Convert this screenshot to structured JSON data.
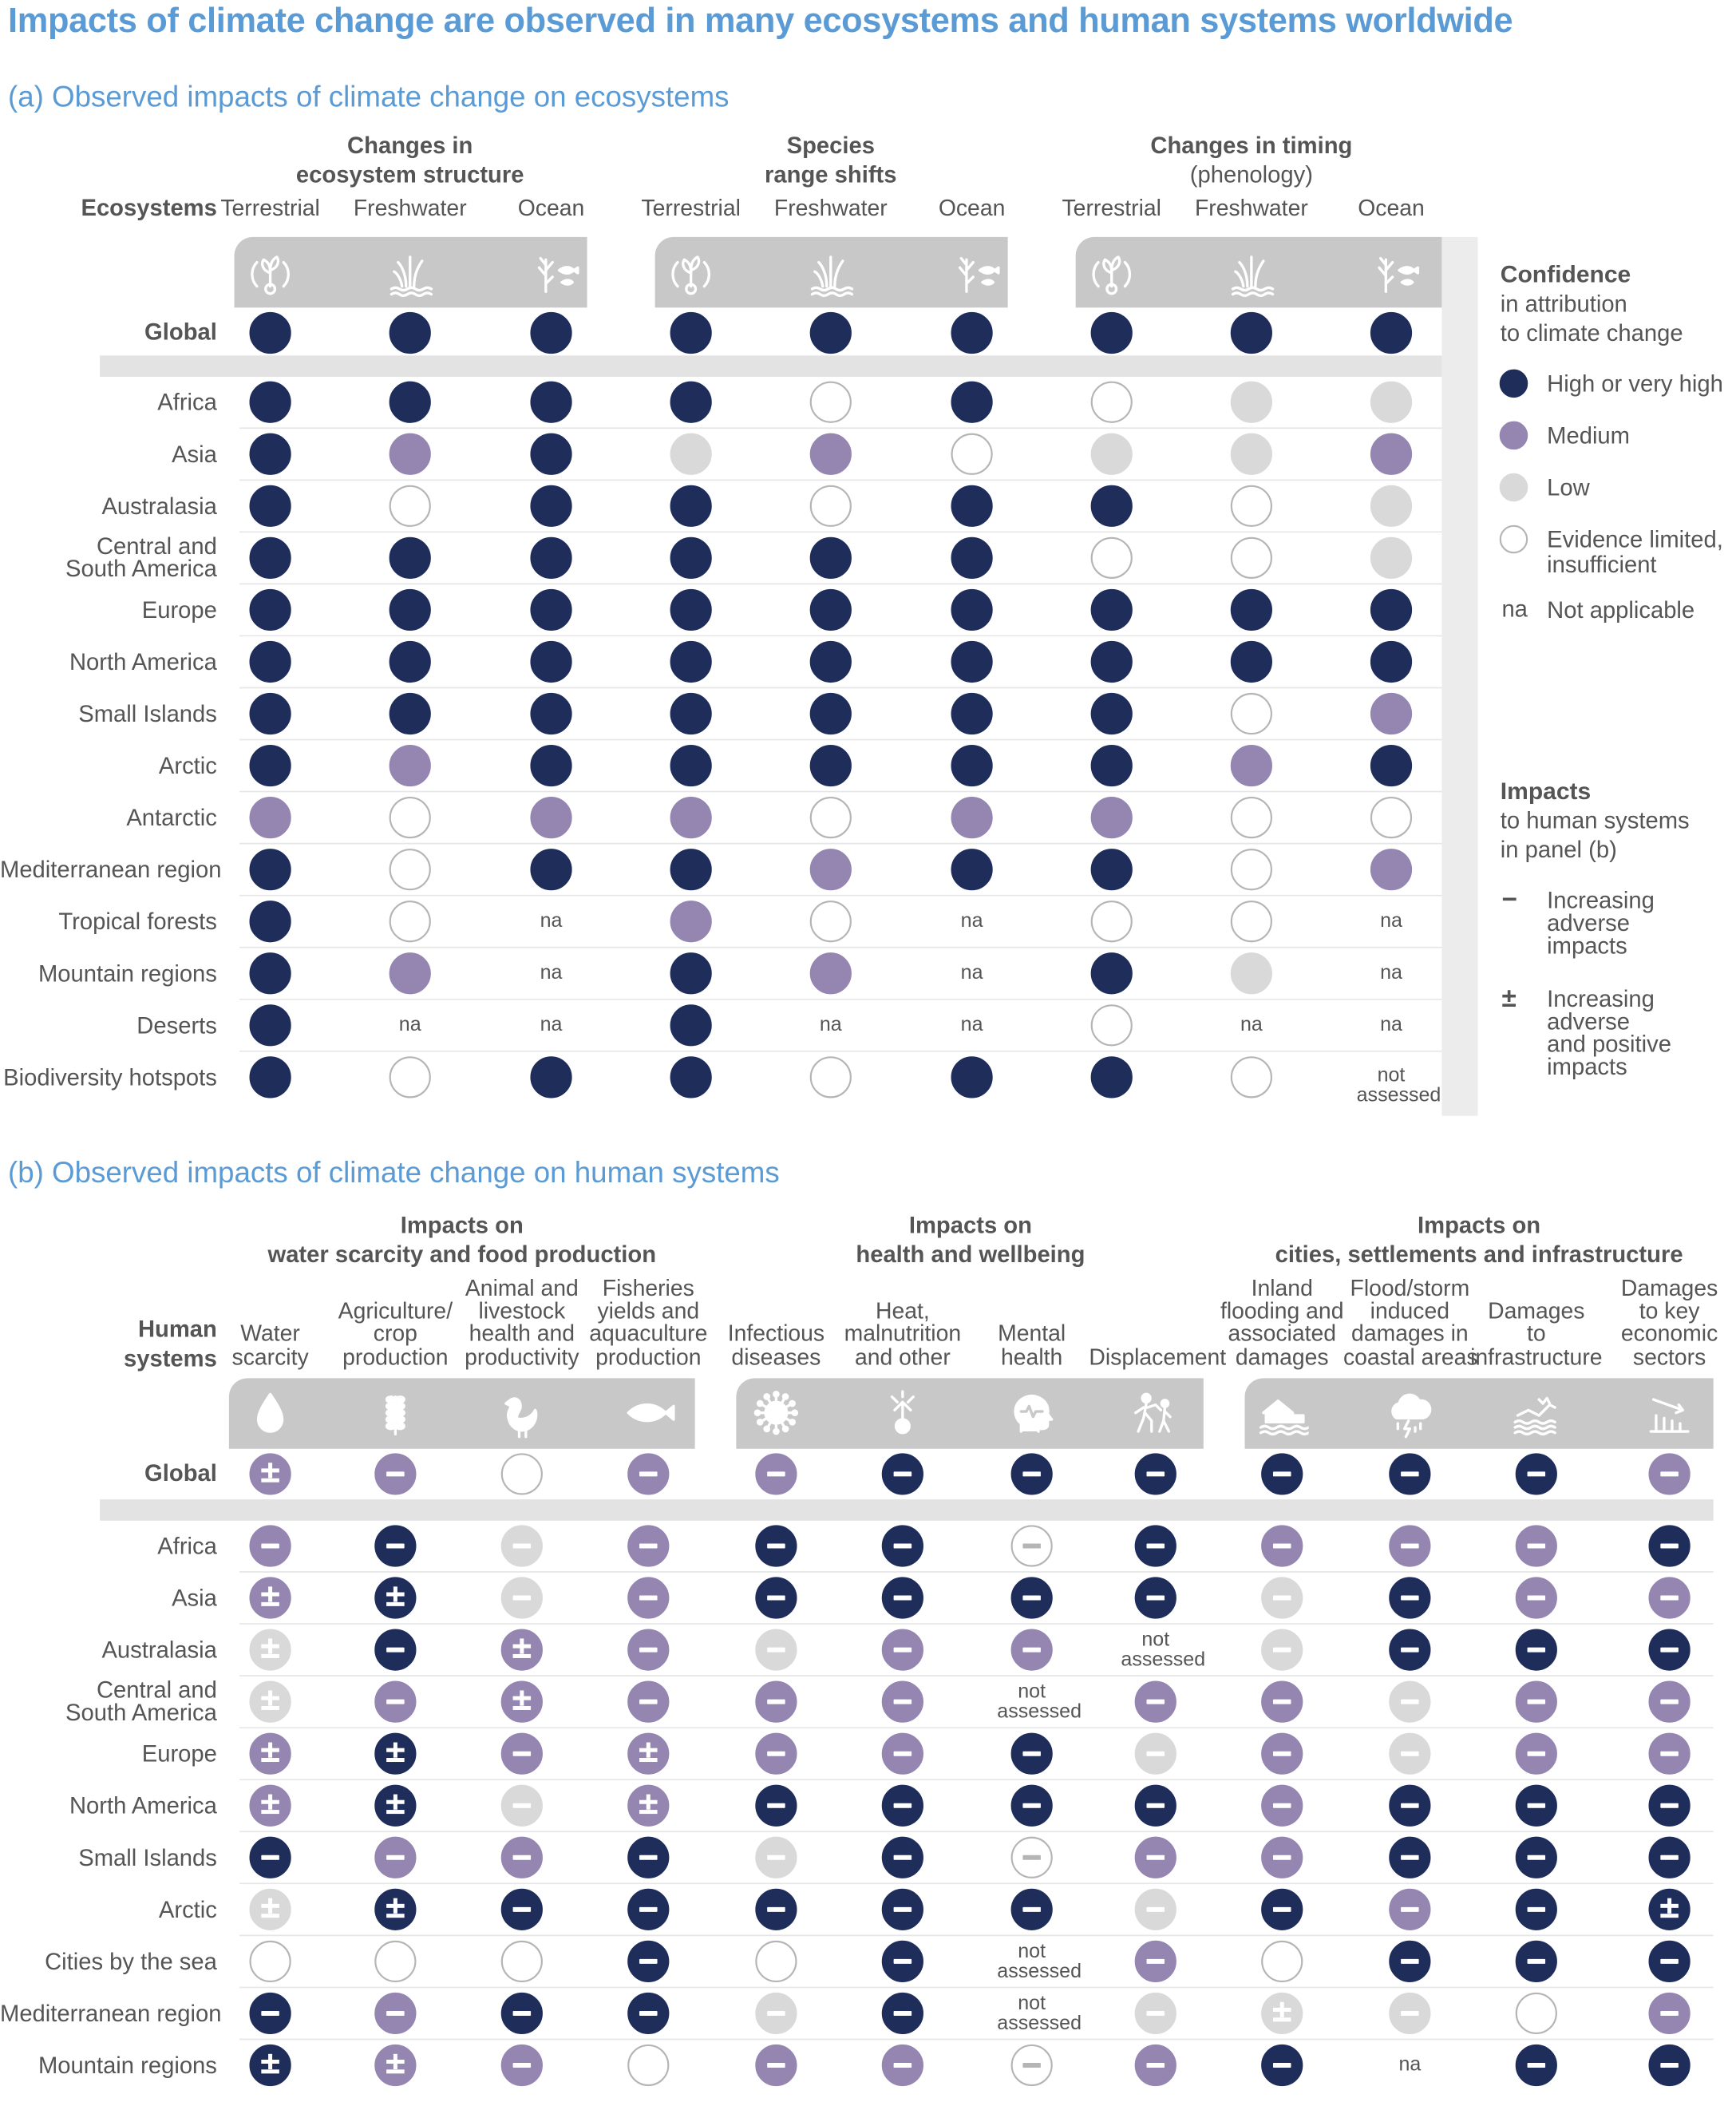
{
  "title": "Impacts of climate change are observed in many ecosystems and human systems worldwide",
  "colors": {
    "high": "#1f2d5b",
    "medium": "#9486b0",
    "low": "#d9d9d9",
    "limited": "#ffffff",
    "band": "#c8c8c8",
    "shade": "#e6e6e6"
  },
  "panel_a": {
    "title": "(a) Observed impacts of climate change on ecosystems",
    "row_header": "Ecosystems",
    "groups": [
      {
        "line1": "Changes in",
        "line2": "ecosystem structure",
        "line2_bold": true
      },
      {
        "line1": "Species",
        "line2": "range shifts",
        "line2_bold": true
      },
      {
        "line1": "Changes in timing",
        "line2": "(phenology)",
        "line2_bold": false
      }
    ],
    "columns": [
      {
        "label": "Terrestrial",
        "icon": "terrestrial-icon"
      },
      {
        "label": "Freshwater",
        "icon": "freshwater-icon"
      },
      {
        "label": "Ocean",
        "icon": "ocean-icon"
      },
      {
        "label": "Terrestrial",
        "icon": "terrestrial-icon"
      },
      {
        "label": "Freshwater",
        "icon": "freshwater-icon"
      },
      {
        "label": "Ocean",
        "icon": "ocean-icon"
      },
      {
        "label": "Terrestrial",
        "icon": "terrestrial-icon"
      },
      {
        "label": "Freshwater",
        "icon": "freshwater-icon"
      },
      {
        "label": "Ocean",
        "icon": "ocean-icon"
      }
    ],
    "global": {
      "label": "Global",
      "values": [
        "H",
        "H",
        "H",
        "H",
        "H",
        "H",
        "H",
        "H",
        "H"
      ]
    },
    "rows": [
      {
        "label": [
          "Africa"
        ],
        "values": [
          "H",
          "H",
          "H",
          "H",
          "E",
          "H",
          "E",
          "L",
          "L"
        ]
      },
      {
        "label": [
          "Asia"
        ],
        "values": [
          "H",
          "M",
          "H",
          "L",
          "M",
          "E",
          "L",
          "L",
          "M"
        ]
      },
      {
        "label": [
          "Australasia"
        ],
        "values": [
          "H",
          "E",
          "H",
          "H",
          "E",
          "H",
          "H",
          "E",
          "L"
        ]
      },
      {
        "label": [
          "Central and",
          "South America"
        ],
        "values": [
          "H",
          "H",
          "H",
          "H",
          "H",
          "H",
          "E",
          "E",
          "L"
        ]
      },
      {
        "label": [
          "Europe"
        ],
        "values": [
          "H",
          "H",
          "H",
          "H",
          "H",
          "H",
          "H",
          "H",
          "H"
        ]
      },
      {
        "label": [
          "North America"
        ],
        "values": [
          "H",
          "H",
          "H",
          "H",
          "H",
          "H",
          "H",
          "H",
          "H"
        ]
      },
      {
        "label": [
          "Small Islands"
        ],
        "values": [
          "H",
          "H",
          "H",
          "H",
          "H",
          "H",
          "H",
          "E",
          "M"
        ]
      },
      {
        "label": [
          "Arctic"
        ],
        "values": [
          "H",
          "M",
          "H",
          "H",
          "H",
          "H",
          "H",
          "M",
          "H"
        ]
      },
      {
        "label": [
          "Antarctic"
        ],
        "values": [
          "M",
          "E",
          "M",
          "M",
          "E",
          "M",
          "M",
          "E",
          "E"
        ]
      },
      {
        "label": [
          "Mediterranean region"
        ],
        "values": [
          "H",
          "E",
          "H",
          "H",
          "M",
          "H",
          "H",
          "E",
          "M"
        ]
      },
      {
        "label": [
          "Tropical forests"
        ],
        "values": [
          "H",
          "E",
          "na",
          "M",
          "E",
          "na",
          "E",
          "E",
          "na"
        ]
      },
      {
        "label": [
          "Mountain regions"
        ],
        "values": [
          "H",
          "M",
          "na",
          "H",
          "M",
          "na",
          "H",
          "L",
          "na"
        ]
      },
      {
        "label": [
          "Deserts"
        ],
        "values": [
          "H",
          "na",
          "na",
          "H",
          "na",
          "na",
          "E",
          "na",
          "na"
        ]
      },
      {
        "label": [
          "Biodiversity hotspots"
        ],
        "values": [
          "H",
          "E",
          "H",
          "H",
          "E",
          "H",
          "H",
          "E",
          "not assessed"
        ]
      }
    ],
    "legend": {
      "heading": "Confidence",
      "sub": [
        "in attribution",
        "to climate change"
      ],
      "items": [
        {
          "key": "H",
          "label": [
            "High or very high"
          ]
        },
        {
          "key": "M",
          "label": [
            "Medium"
          ]
        },
        {
          "key": "L",
          "label": [
            "Low"
          ]
        },
        {
          "key": "E",
          "label": [
            "Evidence limited,",
            "insufficient"
          ]
        },
        {
          "key": "na",
          "symbol": "na",
          "label": [
            "Not applicable"
          ]
        }
      ],
      "impacts_heading": "Impacts",
      "impacts_sub": [
        "to human systems",
        "in panel (b)"
      ],
      "impact_items": [
        {
          "symbol": "−",
          "label": [
            "Increasing",
            "adverse",
            "impacts"
          ]
        },
        {
          "symbol": "±",
          "label": [
            "Increasing",
            "adverse",
            "and positive",
            "impacts"
          ]
        }
      ]
    }
  },
  "panel_b": {
    "title": "(b) Observed impacts of climate change on human systems",
    "row_header": [
      "Human",
      "systems"
    ],
    "groups": [
      {
        "line1": "Impacts on",
        "line2": "water scarcity and food production"
      },
      {
        "line1": "Impacts on",
        "line2": "health and wellbeing"
      },
      {
        "line1": "Impacts on",
        "line2": "cities, settlements and infrastructure"
      }
    ],
    "columns": [
      {
        "label": [
          "Water",
          "scarcity"
        ],
        "icon": "water-drop-icon"
      },
      {
        "label": [
          "Agriculture/",
          "crop",
          "production"
        ],
        "icon": "wheat-icon"
      },
      {
        "label": [
          "Animal and",
          "livestock",
          "health and",
          "productivity"
        ],
        "icon": "chicken-icon"
      },
      {
        "label": [
          "Fisheries",
          "yields and",
          "aquaculture",
          "production"
        ],
        "icon": "fish-icon"
      },
      {
        "label": [
          "Infectious",
          "diseases"
        ],
        "icon": "virus-icon"
      },
      {
        "label": [
          "Heat,",
          "malnutrition",
          "and other"
        ],
        "icon": "heat-person-icon"
      },
      {
        "label": [
          "Mental",
          "health"
        ],
        "icon": "mental-health-icon"
      },
      {
        "label": [
          "Displacement"
        ],
        "icon": "displacement-icon"
      },
      {
        "label": [
          "Inland",
          "flooding and",
          "associated",
          "damages"
        ],
        "icon": "flooded-house-icon"
      },
      {
        "label": [
          "Flood/storm",
          "induced",
          "damages in",
          "coastal areas"
        ],
        "icon": "storm-cloud-icon"
      },
      {
        "label": [
          "Damages",
          "to",
          "infrastructure"
        ],
        "icon": "damaged-infrastructure-icon"
      },
      {
        "label": [
          "Damages",
          "to key",
          "economic",
          "sectors"
        ],
        "icon": "declining-chart-icon"
      }
    ],
    "global": {
      "label": "Global",
      "values": [
        "M±",
        "M-",
        "E",
        "M-",
        "M-",
        "H-",
        "H-",
        "H-",
        "H-",
        "H-",
        "H-",
        "M-"
      ]
    },
    "rows": [
      {
        "label": [
          "Africa"
        ],
        "values": [
          "M-",
          "H-",
          "L-",
          "M-",
          "H-",
          "H-",
          "E-",
          "H-",
          "M-",
          "M-",
          "M-",
          "H-"
        ]
      },
      {
        "label": [
          "Asia"
        ],
        "values": [
          "M±",
          "H±",
          "L-",
          "M-",
          "H-",
          "H-",
          "H-",
          "H-",
          "L-",
          "H-",
          "M-",
          "M-"
        ]
      },
      {
        "label": [
          "Australasia"
        ],
        "values": [
          "L±",
          "H-",
          "M±",
          "M-",
          "L-",
          "M-",
          "M-",
          "not assessed",
          "L-",
          "H-",
          "H-",
          "H-"
        ]
      },
      {
        "label": [
          "Central and",
          "South America"
        ],
        "values": [
          "L±",
          "M-",
          "M±",
          "M-",
          "M-",
          "M-",
          "not assessed",
          "M-",
          "M-",
          "L-",
          "M-",
          "M-"
        ]
      },
      {
        "label": [
          "Europe"
        ],
        "values": [
          "M±",
          "H±",
          "M-",
          "M±",
          "M-",
          "M-",
          "H-",
          "L-",
          "M-",
          "L-",
          "M-",
          "M-"
        ]
      },
      {
        "label": [
          "North America"
        ],
        "values": [
          "M±",
          "H±",
          "L-",
          "M±",
          "H-",
          "H-",
          "H-",
          "H-",
          "M-",
          "H-",
          "H-",
          "H-"
        ]
      },
      {
        "label": [
          "Small Islands"
        ],
        "values": [
          "H-",
          "M-",
          "M-",
          "H-",
          "L-",
          "H-",
          "E-",
          "M-",
          "M-",
          "H-",
          "H-",
          "H-"
        ]
      },
      {
        "label": [
          "Arctic"
        ],
        "values": [
          "L±",
          "H±",
          "H-",
          "H-",
          "H-",
          "H-",
          "H-",
          "L-",
          "H-",
          "M-",
          "H-",
          "H±"
        ]
      },
      {
        "label": [
          "Cities by the sea"
        ],
        "values": [
          "E",
          "E",
          "E",
          "H-",
          "E",
          "H-",
          "not assessed",
          "M-",
          "E",
          "H-",
          "H-",
          "H-"
        ]
      },
      {
        "label": [
          "Mediterranean region"
        ],
        "values": [
          "H-",
          "M-",
          "H-",
          "H-",
          "L-",
          "H-",
          "not assessed",
          "L-",
          "L±",
          "L-",
          "E",
          "M-"
        ]
      },
      {
        "label": [
          "Mountain regions"
        ],
        "values": [
          "H±",
          "M±",
          "M-",
          "E",
          "M-",
          "M-",
          "E-",
          "M-",
          "H-",
          "na",
          "H-",
          "H-"
        ]
      }
    ]
  }
}
